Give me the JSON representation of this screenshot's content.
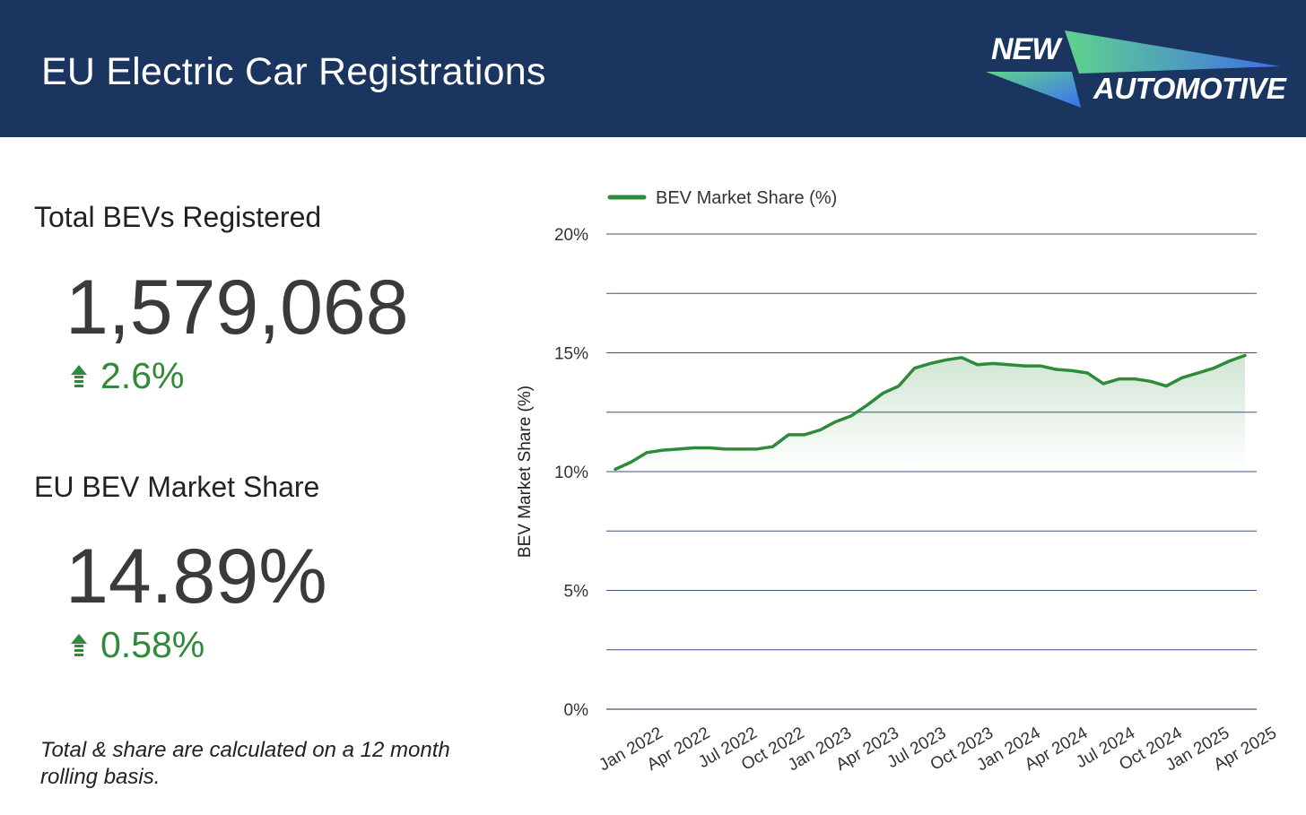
{
  "header": {
    "title": "EU Electric Car Registrations",
    "logo_line1": "NEW",
    "logo_line2": "AUTOMOTIVE",
    "background": "#1b3561"
  },
  "metrics": {
    "total": {
      "label": "Total BEVs Registered",
      "value": "1,579,068",
      "change": "2.6%"
    },
    "share": {
      "label": "EU BEV Market Share",
      "value": "14.89%",
      "change": "0.58%"
    }
  },
  "footnote": "Total & share are calculated on a 12 month rolling basis.",
  "colors": {
    "accent_green": "#2f8a3a",
    "line": "#2e8b3a",
    "gridline": "#1b3561"
  },
  "chart_data": {
    "type": "area",
    "title": "",
    "ylabel": "BEV Market Share (%)",
    "xlabel": "",
    "ylim": [
      0,
      20
    ],
    "yticks": [
      0,
      5,
      10,
      15,
      20
    ],
    "ytick_labels": [
      "0%",
      "5%",
      "10%",
      "15%",
      "20%"
    ],
    "legend_position": "top-left",
    "x": [
      "2022-01",
      "2022-02",
      "2022-03",
      "2022-04",
      "2022-05",
      "2022-06",
      "2022-07",
      "2022-08",
      "2022-09",
      "2022-10",
      "2022-11",
      "2022-12",
      "2023-01",
      "2023-02",
      "2023-03",
      "2023-04",
      "2023-05",
      "2023-06",
      "2023-07",
      "2023-08",
      "2023-09",
      "2023-10",
      "2023-11",
      "2023-12",
      "2024-01",
      "2024-02",
      "2024-03",
      "2024-04",
      "2024-05",
      "2024-06",
      "2024-07",
      "2024-08",
      "2024-09",
      "2024-10",
      "2024-11",
      "2024-12",
      "2025-01",
      "2025-02",
      "2025-03",
      "2025-04",
      "2025-05"
    ],
    "x_tick_labels": [
      "Jan 2022",
      "Apr 2022",
      "Jul 2022",
      "Oct 2022",
      "Jan 2023",
      "Apr 2023",
      "Jul 2023",
      "Oct 2023",
      "Jan 2024",
      "Apr 2024",
      "Jul 2024",
      "Oct 2024",
      "Jan 2025",
      "Apr 2025"
    ],
    "series": [
      {
        "name": "BEV Market Share (%)",
        "values": [
          10.1,
          10.4,
          10.8,
          10.9,
          10.95,
          11.0,
          11.0,
          10.95,
          10.95,
          10.95,
          11.05,
          11.55,
          11.55,
          11.75,
          12.1,
          12.35,
          12.8,
          13.3,
          13.6,
          14.35,
          14.55,
          14.7,
          14.8,
          14.5,
          14.55,
          14.5,
          14.45,
          14.45,
          14.3,
          14.25,
          14.15,
          13.7,
          13.9,
          13.9,
          13.8,
          13.6,
          13.95,
          14.15,
          14.35,
          14.65,
          14.89
        ]
      }
    ]
  }
}
